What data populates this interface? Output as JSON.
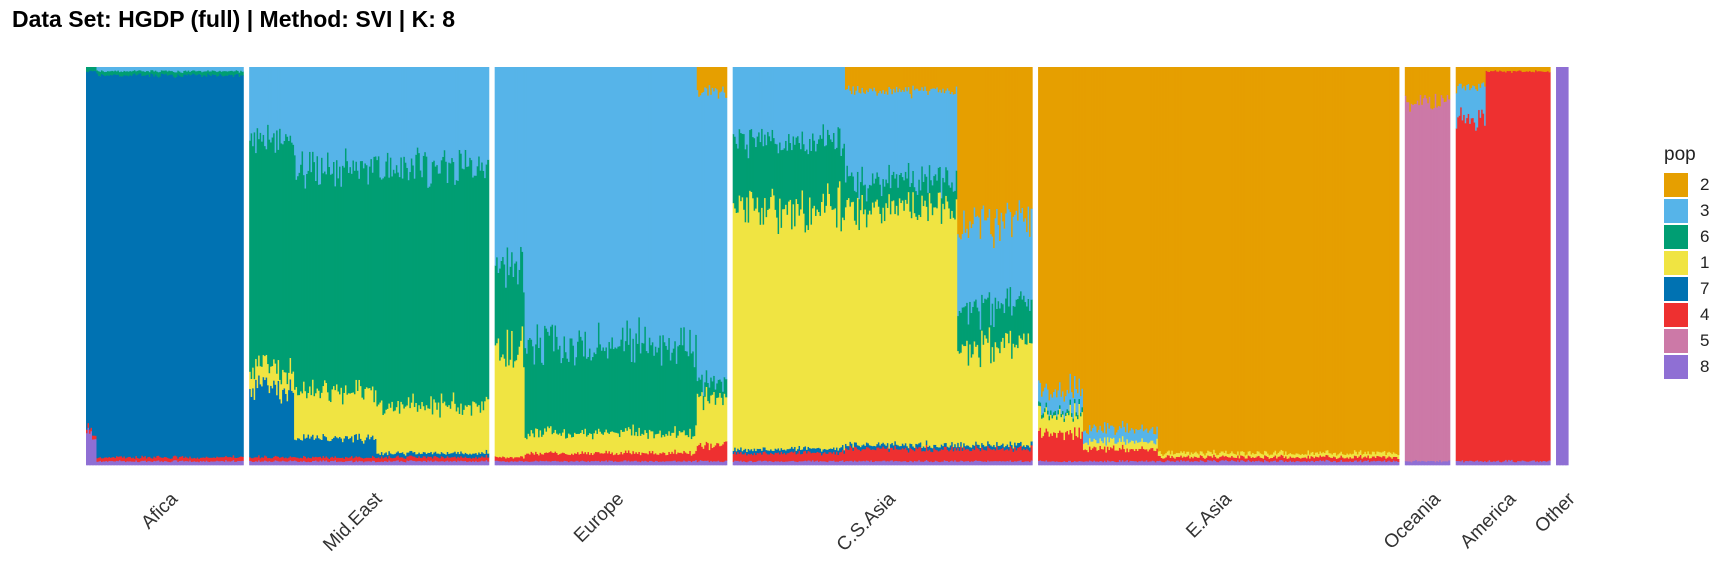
{
  "chart_data": {
    "type": "bar",
    "subtype": "stacked-admixture",
    "title": "Data Set: HGDP (full) | Method: SVI | K: 8",
    "xlabel": "",
    "ylabel": "",
    "ylim": [
      0,
      1
    ],
    "stack_order_bottom_to_top": [
      "8",
      "5",
      "4",
      "7",
      "1",
      "6",
      "3",
      "2"
    ],
    "legend": {
      "title": "pop",
      "placement": "right",
      "entries": [
        {
          "label": "2",
          "color": "#E69F00"
        },
        {
          "label": "3",
          "color": "#56B4E9"
        },
        {
          "label": "6",
          "color": "#009E73"
        },
        {
          "label": "1",
          "color": "#F0E442"
        },
        {
          "label": "7",
          "color": "#0072B2"
        },
        {
          "label": "4",
          "color": "#EE3030"
        },
        {
          "label": "5",
          "color": "#CC79A7"
        },
        {
          "label": "8",
          "color": "#8F6FD4"
        }
      ]
    },
    "groups": [
      {
        "name": "Afica",
        "individuals": 105,
        "segments": [
          {
            "cols": 7,
            "props": {
              "8": 0.08,
              "4": 0.01,
              "7": 0.9,
              "6": 0.01
            }
          },
          {
            "cols": 98,
            "props": {
              "8": 0.01,
              "4": 0.01,
              "7": 0.96,
              "6": 0.01,
              "3": 0.01
            }
          }
        ]
      },
      {
        "name": "Mid.East",
        "individuals": 160,
        "segments": [
          {
            "cols": 30,
            "props": {
              "8": 0.01,
              "4": 0.01,
              "7": 0.17,
              "1": 0.05,
              "6": 0.57,
              "3": 0.19
            }
          },
          {
            "cols": 55,
            "props": {
              "8": 0.01,
              "4": 0.01,
              "7": 0.05,
              "1": 0.12,
              "6": 0.56,
              "3": 0.25
            }
          },
          {
            "cols": 75,
            "props": {
              "8": 0.01,
              "4": 0.01,
              "7": 0.01,
              "1": 0.12,
              "6": 0.6,
              "3": 0.25
            }
          }
        ]
      },
      {
        "name": "Europe",
        "individuals": 155,
        "segments": [
          {
            "cols": 20,
            "props": {
              "8": 0.01,
              "4": 0.01,
              "1": 0.27,
              "6": 0.21,
              "3": 0.5
            }
          },
          {
            "cols": 115,
            "props": {
              "8": 0.01,
              "4": 0.02,
              "1": 0.05,
              "6": 0.22,
              "3": 0.7
            }
          },
          {
            "cols": 20,
            "props": {
              "8": 0.01,
              "4": 0.04,
              "1": 0.12,
              "6": 0.04,
              "3": 0.73,
              "2": 0.06
            }
          }
        ]
      },
      {
        "name": "C.S.Asia",
        "individuals": 200,
        "segments": [
          {
            "cols": 75,
            "props": {
              "8": 0.01,
              "4": 0.02,
              "7": 0.01,
              "1": 0.61,
              "6": 0.17,
              "3": 0.18
            }
          },
          {
            "cols": 75,
            "props": {
              "8": 0.01,
              "4": 0.03,
              "7": 0.01,
              "1": 0.6,
              "6": 0.07,
              "3": 0.22,
              "2": 0.06
            }
          },
          {
            "cols": 50,
            "props": {
              "8": 0.01,
              "4": 0.03,
              "7": 0.01,
              "1": 0.25,
              "6": 0.1,
              "3": 0.21,
              "2": 0.39
            }
          }
        ]
      },
      {
        "name": "E.Asia",
        "individuals": 241,
        "segments": [
          {
            "cols": 30,
            "props": {
              "8": 0.01,
              "4": 0.07,
              "1": 0.05,
              "6": 0.01,
              "3": 0.05,
              "2": 0.81
            }
          },
          {
            "cols": 50,
            "props": {
              "8": 0.01,
              "4": 0.03,
              "1": 0.02,
              "3": 0.03,
              "2": 0.91
            }
          },
          {
            "cols": 161,
            "props": {
              "8": 0.01,
              "4": 0.01,
              "1": 0.01,
              "2": 0.97
            }
          }
        ]
      },
      {
        "name": "Oceania",
        "individuals": 30,
        "segments": [
          {
            "cols": 30,
            "props": {
              "8": 0.01,
              "5": 0.9,
              "2": 0.09
            }
          }
        ]
      },
      {
        "name": "America",
        "individuals": 63,
        "segments": [
          {
            "cols": 20,
            "props": {
              "8": 0.01,
              "4": 0.86,
              "3": 0.08,
              "2": 0.05
            }
          },
          {
            "cols": 43,
            "props": {
              "8": 0.01,
              "4": 0.98,
              "2": 0.01
            }
          }
        ]
      },
      {
        "name": "Other",
        "individuals": 8,
        "segments": [
          {
            "cols": 8,
            "props": {
              "8": 1.0
            }
          }
        ]
      }
    ]
  }
}
